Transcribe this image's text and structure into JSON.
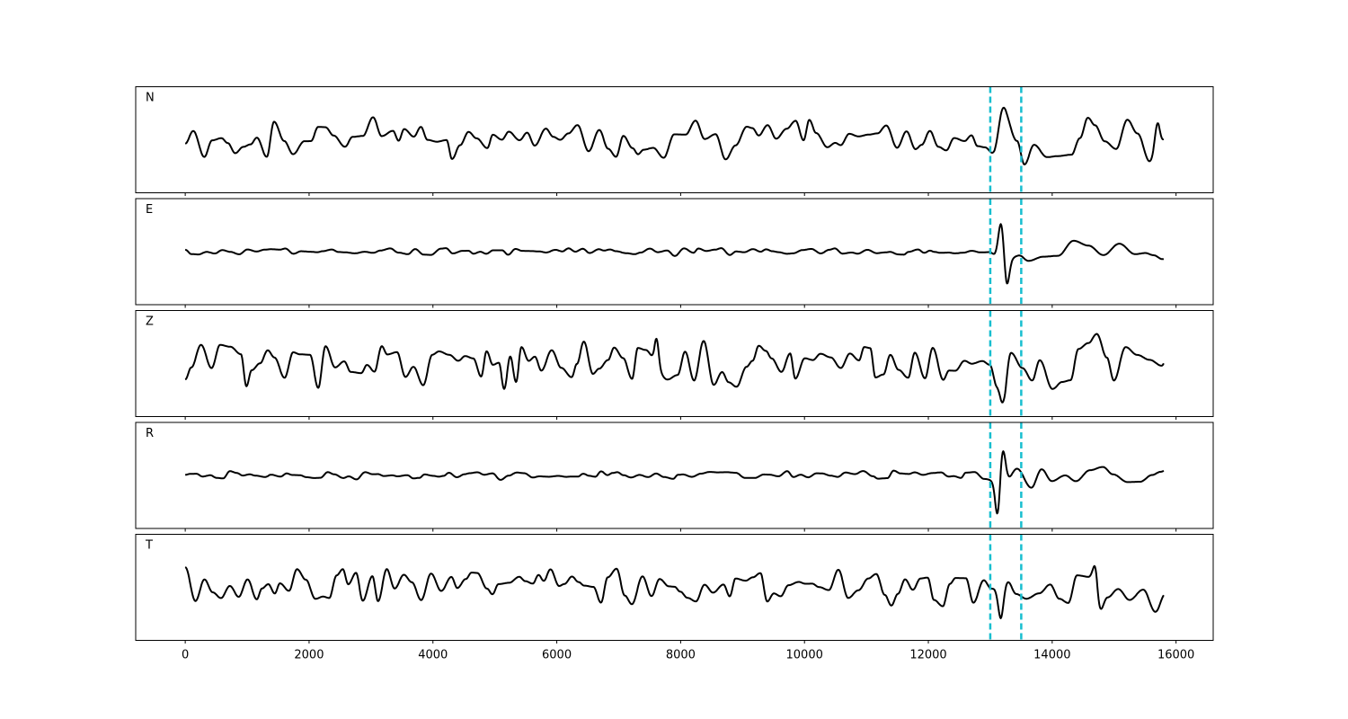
{
  "chart_data": {
    "type": "line",
    "x_axis": {
      "ticks": [
        0,
        2000,
        4000,
        6000,
        8000,
        10000,
        12000,
        14000,
        16000
      ],
      "tick_labels": [
        "0",
        "2000",
        "4000",
        "6000",
        "8000",
        "10000",
        "12000",
        "14000",
        "16000"
      ],
      "xlim": [
        -800,
        16600
      ],
      "label": ""
    },
    "x_range": [
      0,
      15800
    ],
    "marker_lines": {
      "x": [
        13000,
        13500
      ],
      "color": "#17becf",
      "style": "dashed"
    },
    "line_color": "#000000",
    "ylim": [
      -1,
      1
    ],
    "panels": [
      {
        "label": "N",
        "segments": [
          {
            "x0": 0,
            "x1": 13000,
            "amp": 0.52,
            "period": 160
          },
          {
            "x0": 13000,
            "x1": 15800,
            "amp": 0.62,
            "period": 200
          }
        ],
        "peaks": [
          {
            "x": 13180,
            "a": 0.45,
            "w": 90
          },
          {
            "x": 15700,
            "a": 0.55,
            "w": 60
          }
        ]
      },
      {
        "label": "E",
        "segments": [
          {
            "x0": 0,
            "x1": 12700,
            "amp": 0.11,
            "period": 140
          },
          {
            "x0": 12700,
            "x1": 13000,
            "amp": 0.14,
            "period": 160
          },
          {
            "x0": 13000,
            "x1": 15800,
            "amp": 0.3,
            "period": 230
          }
        ],
        "peaks": [
          {
            "x": 13180,
            "a": 0.9,
            "w": 70
          },
          {
            "x": 13260,
            "a": -0.75,
            "w": 60
          }
        ]
      },
      {
        "label": "Z",
        "segments": [
          {
            "x0": 0,
            "x1": 13000,
            "amp": 0.62,
            "period": 150
          },
          {
            "x0": 13000,
            "x1": 15800,
            "amp": 0.7,
            "period": 180
          }
        ],
        "peaks": [
          {
            "x": 7620,
            "a": 0.55,
            "w": 50
          },
          {
            "x": 13200,
            "a": -0.5,
            "w": 60
          }
        ]
      },
      {
        "label": "R",
        "segments": [
          {
            "x0": 0,
            "x1": 12800,
            "amp": 0.12,
            "period": 140
          },
          {
            "x0": 12800,
            "x1": 13000,
            "amp": 0.16,
            "period": 150
          },
          {
            "x0": 13000,
            "x1": 15800,
            "amp": 0.3,
            "period": 220
          }
        ],
        "peaks": [
          {
            "x": 13200,
            "a": 0.7,
            "w": 60
          },
          {
            "x": 13120,
            "a": -0.85,
            "w": 55
          }
        ]
      },
      {
        "label": "T",
        "segments": [
          {
            "x0": 0,
            "x1": 13000,
            "amp": 0.5,
            "period": 150
          },
          {
            "x0": 13000,
            "x1": 15800,
            "amp": 0.65,
            "period": 200
          }
        ],
        "peaks": [
          {
            "x": 13170,
            "a": -0.7,
            "w": 60
          },
          {
            "x": 14700,
            "a": 0.6,
            "w": 50
          }
        ]
      }
    ]
  }
}
